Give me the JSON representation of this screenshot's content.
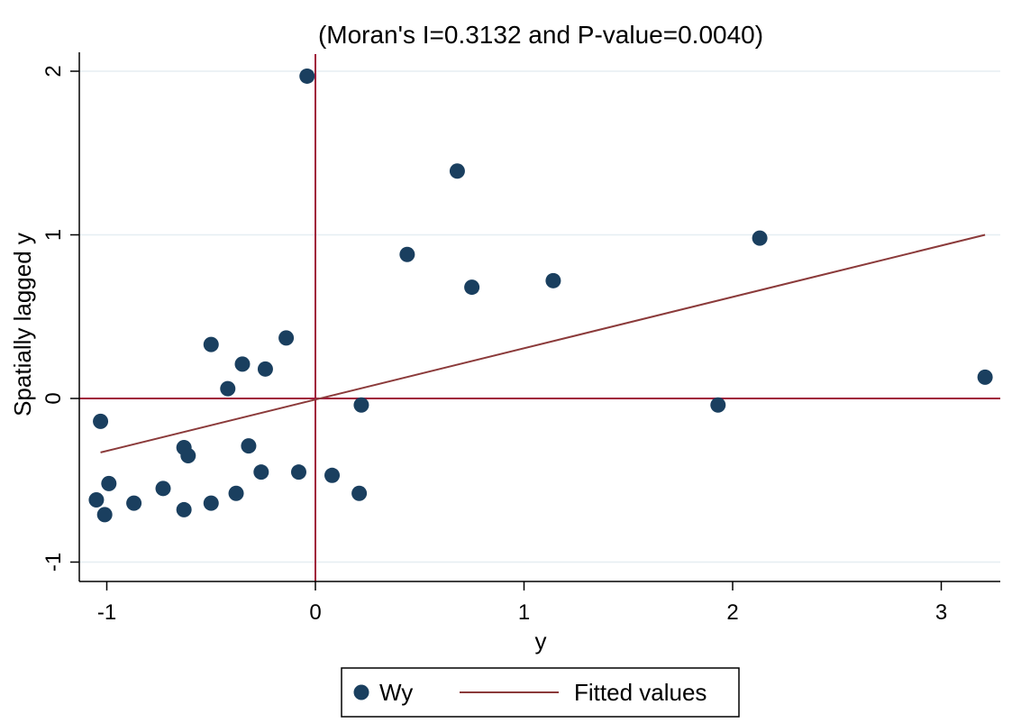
{
  "chart_data": {
    "type": "scatter",
    "title": "(Moran's I=0.3132 and P-value=0.0040)",
    "xlabel": "y",
    "ylabel": "Spatially lagged y",
    "xlim": [
      -1.1,
      3.3
    ],
    "ylim": [
      -1.1,
      2.1
    ],
    "xticks": [
      -1,
      0,
      1,
      2,
      3
    ],
    "yticks": [
      -1,
      0,
      1,
      2
    ],
    "grid": "horizontal",
    "colors": {
      "points": "#1a3f5f",
      "fitted": "#8b3a3a",
      "reference": "#a0173a",
      "grid": "#e6eef2"
    },
    "reference_lines": {
      "x": 0,
      "y": 0
    },
    "series": [
      {
        "name": "Wy",
        "kind": "scatter",
        "points": [
          [
            -1.05,
            -0.62
          ],
          [
            -1.03,
            -0.14
          ],
          [
            -1.01,
            -0.71
          ],
          [
            -0.99,
            -0.52
          ],
          [
            -0.87,
            -0.64
          ],
          [
            -0.73,
            -0.55
          ],
          [
            -0.63,
            -0.3
          ],
          [
            -0.63,
            -0.68
          ],
          [
            -0.61,
            -0.35
          ],
          [
            -0.5,
            0.33
          ],
          [
            -0.5,
            -0.64
          ],
          [
            -0.42,
            0.06
          ],
          [
            -0.38,
            -0.58
          ],
          [
            -0.35,
            0.21
          ],
          [
            -0.32,
            -0.29
          ],
          [
            -0.26,
            -0.45
          ],
          [
            -0.24,
            0.18
          ],
          [
            -0.14,
            0.37
          ],
          [
            -0.08,
            -0.45
          ],
          [
            -0.04,
            1.97
          ],
          [
            0.08,
            -0.47
          ],
          [
            0.21,
            -0.58
          ],
          [
            0.22,
            -0.04
          ],
          [
            0.44,
            0.88
          ],
          [
            0.68,
            1.39
          ],
          [
            0.75,
            0.68
          ],
          [
            1.14,
            0.72
          ],
          [
            1.93,
            -0.04
          ],
          [
            2.13,
            0.98
          ],
          [
            3.21,
            0.13
          ]
        ]
      },
      {
        "name": "Fitted values",
        "kind": "line",
        "points": [
          [
            -1.03,
            -0.33
          ],
          [
            3.21,
            1.0
          ]
        ]
      }
    ],
    "legend": {
      "placement": "bottom",
      "entries": [
        "Wy",
        "Fitted values"
      ]
    }
  }
}
